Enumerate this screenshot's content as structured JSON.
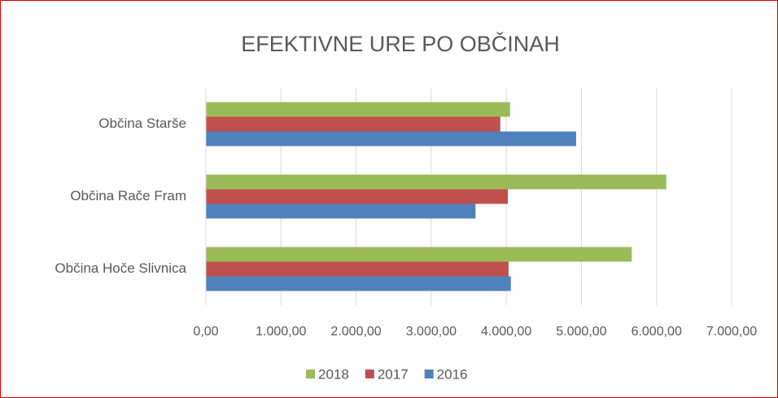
{
  "chart_data": {
    "type": "hbar",
    "title": "EFEKTIVNE URE PO OBČINAH",
    "categories": [
      "Občina Starše",
      "Občina Rače Fram",
      "Občina Hoče Slivnica"
    ],
    "series": [
      {
        "name": "2018",
        "color": "#9bbb59",
        "values": [
          4050,
          6130,
          5670
        ]
      },
      {
        "name": "2017",
        "color": "#c0504d",
        "values": [
          3920,
          4020,
          4030
        ]
      },
      {
        "name": "2016",
        "color": "#4f81bd",
        "values": [
          4930,
          3590,
          4060
        ]
      }
    ],
    "xlim": [
      0,
      7000
    ],
    "xticks": [
      {
        "value": 0,
        "label": "0,00"
      },
      {
        "value": 1000,
        "label": "1.000,00"
      },
      {
        "value": 2000,
        "label": "2.000,00"
      },
      {
        "value": 3000,
        "label": "3.000,00"
      },
      {
        "value": 4000,
        "label": "4.000,00"
      },
      {
        "value": 5000,
        "label": "5.000,00"
      },
      {
        "value": 6000,
        "label": "6.000,00"
      },
      {
        "value": 7000,
        "label": "7.000,00"
      }
    ],
    "grid": true,
    "legend": "bottom"
  }
}
